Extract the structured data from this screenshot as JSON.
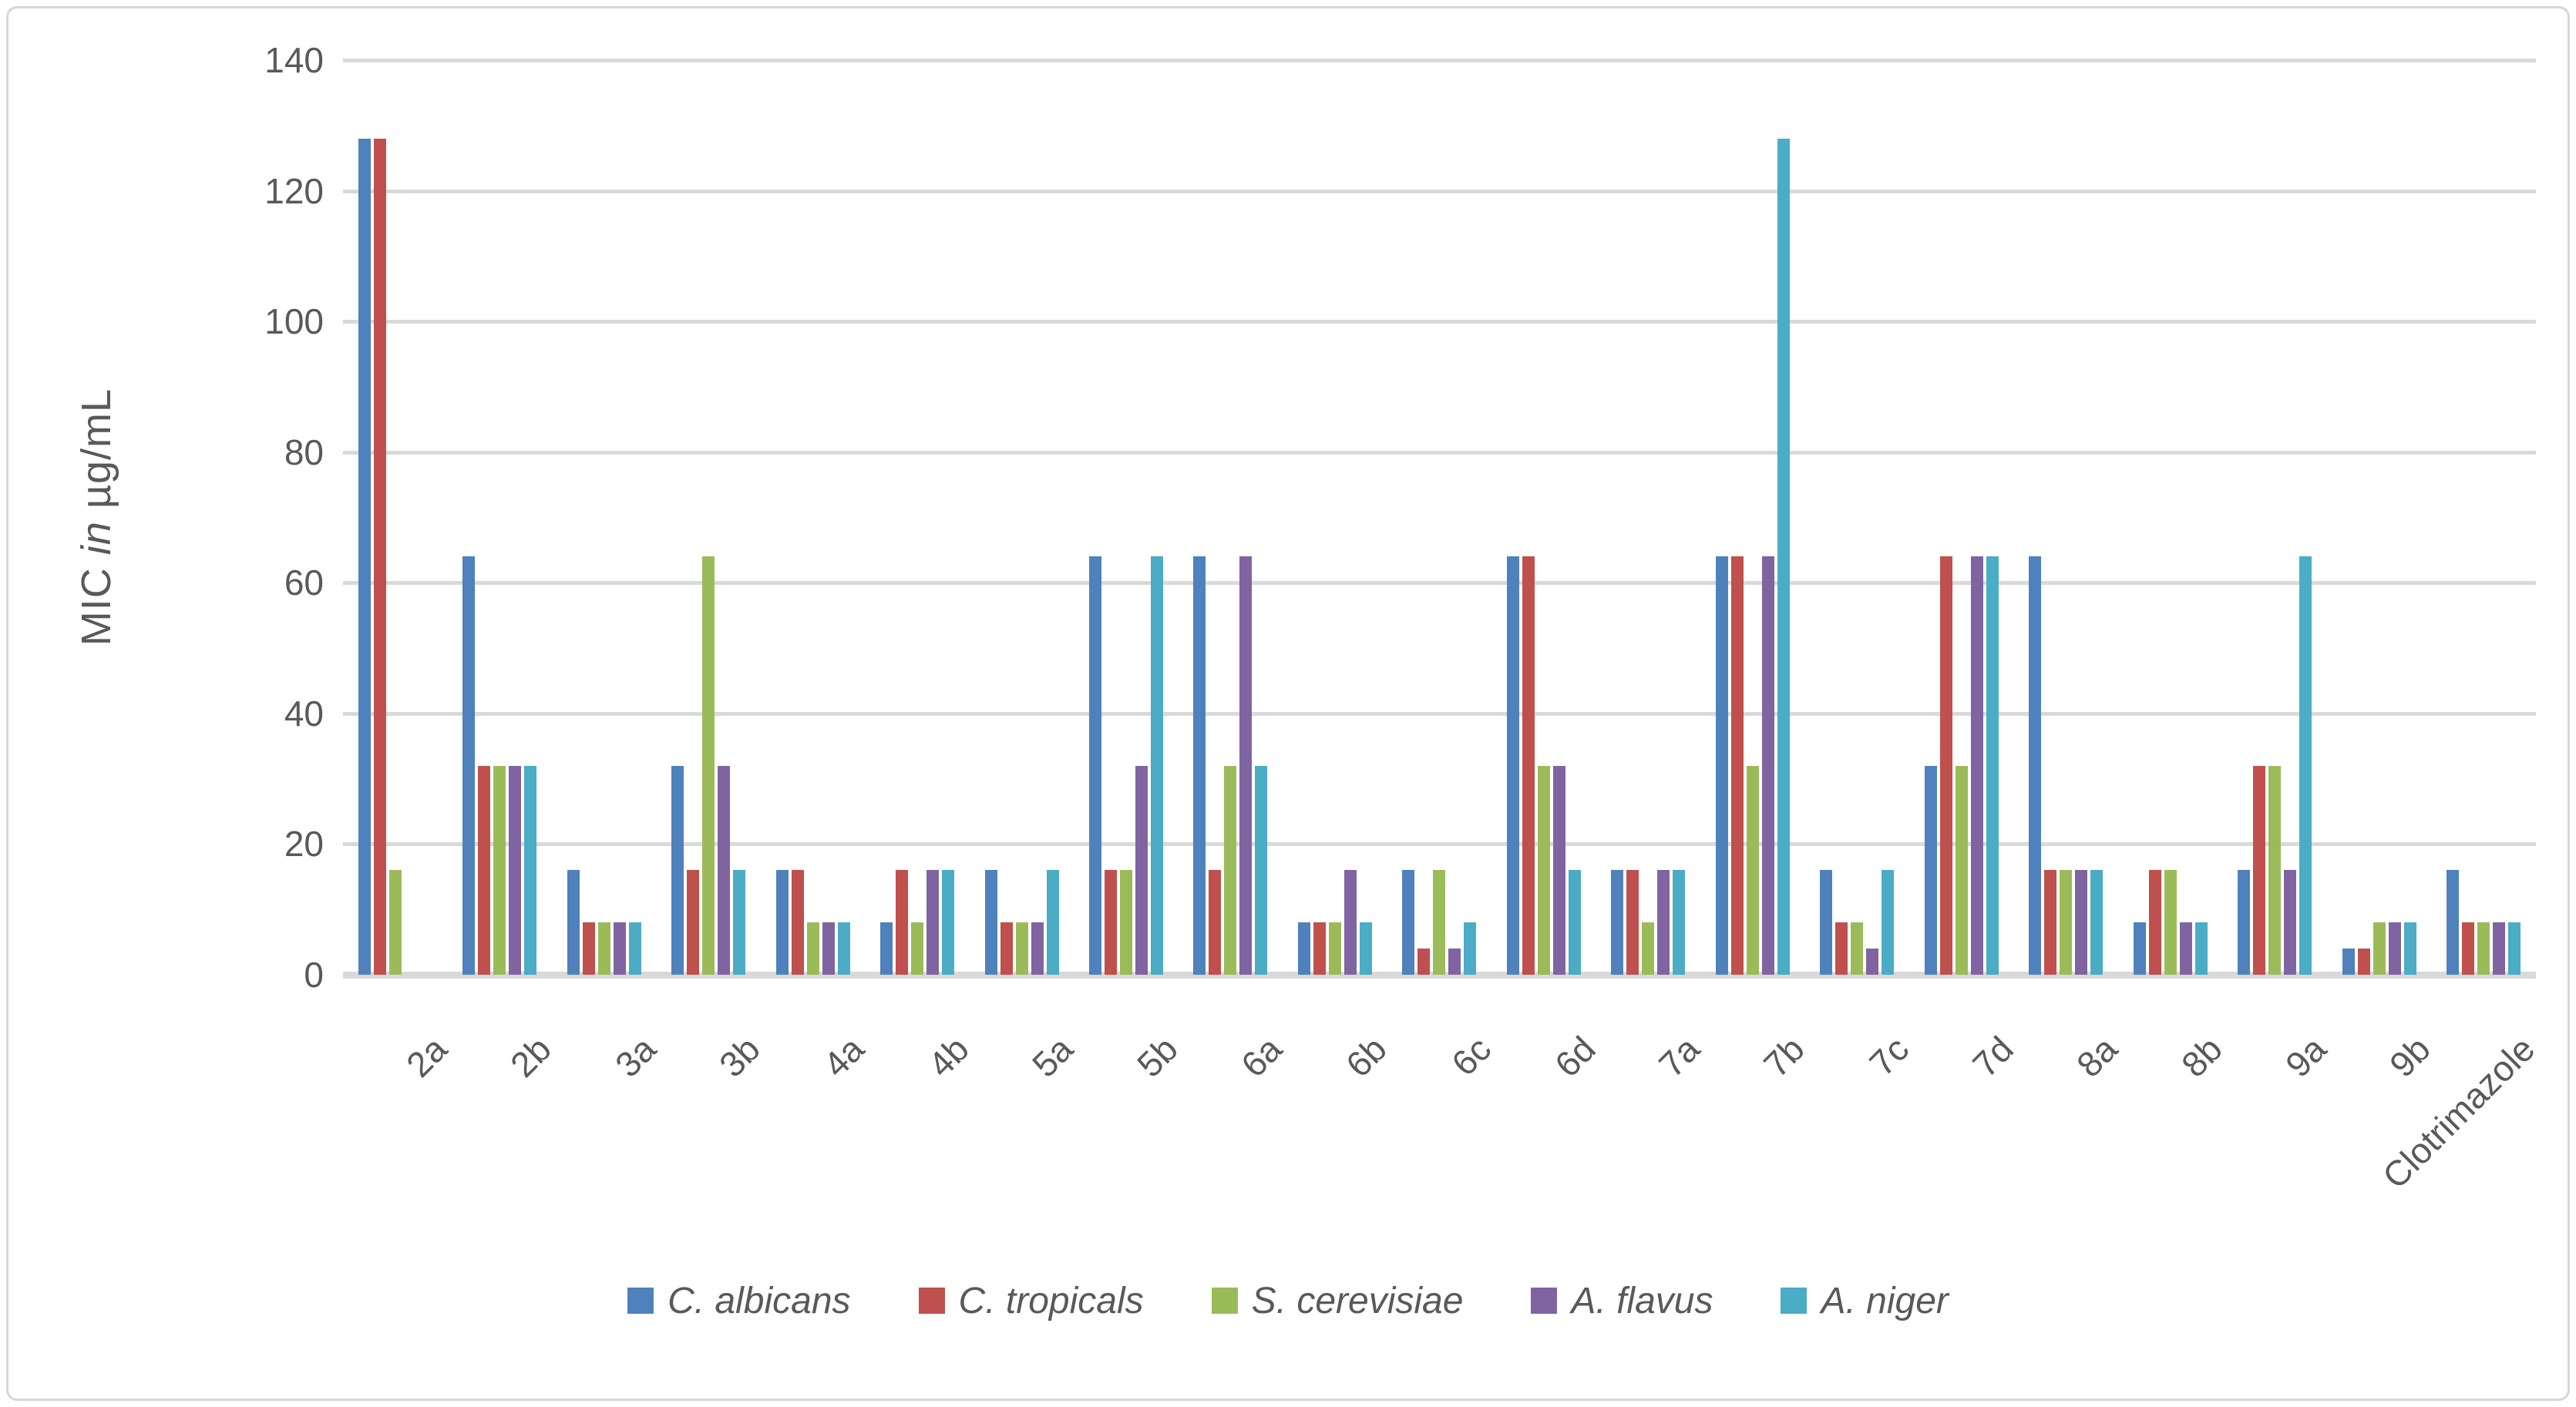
{
  "chart_data": {
    "type": "bar",
    "title": "",
    "ylabel": {
      "prefix": "MIC ",
      "italic_word": "in",
      "suffix": " µg/mL"
    },
    "y_axis": {
      "min": 0,
      "max": 140,
      "tick_step": 20,
      "ticks": [
        0,
        20,
        40,
        60,
        80,
        100,
        120,
        140
      ]
    },
    "grid": "horizontal",
    "legend_position": "bottom",
    "categories": [
      "2a",
      "2b",
      "3a",
      "3b",
      "4a",
      "4b",
      "5a",
      "5b",
      "6a",
      "6b",
      "6c",
      "6d",
      "7a",
      "7b",
      "7c",
      "7d",
      "8a",
      "8b",
      "9a",
      "9b",
      "Clotrimazole"
    ],
    "series": [
      {
        "name": "C. albicans",
        "color": "#4F81BD",
        "values": [
          128,
          64,
          16,
          32,
          16,
          8,
          16,
          64,
          64,
          8,
          16,
          64,
          16,
          64,
          16,
          32,
          64,
          8,
          16,
          4,
          16
        ]
      },
      {
        "name": "C. tropicals",
        "color": "#C0504D",
        "values": [
          128,
          32,
          8,
          16,
          16,
          16,
          8,
          16,
          16,
          8,
          4,
          64,
          16,
          64,
          8,
          64,
          16,
          16,
          32,
          4,
          8
        ]
      },
      {
        "name": "S. cerevisiae",
        "color": "#9BBB59",
        "values": [
          16,
          32,
          8,
          64,
          8,
          8,
          8,
          16,
          32,
          8,
          16,
          32,
          8,
          32,
          8,
          32,
          16,
          16,
          32,
          8,
          8
        ]
      },
      {
        "name": "A. flavus",
        "color": "#8064A2",
        "values": [
          0,
          32,
          8,
          32,
          8,
          16,
          8,
          32,
          64,
          16,
          4,
          32,
          16,
          64,
          4,
          64,
          16,
          8,
          16,
          8,
          8
        ]
      },
      {
        "name": "A. niger",
        "color": "#4BACC6",
        "values": [
          0,
          32,
          8,
          16,
          8,
          16,
          16,
          64,
          32,
          8,
          8,
          16,
          16,
          128,
          16,
          64,
          16,
          8,
          64,
          8,
          8
        ]
      }
    ],
    "colors": {
      "gridline": "#d9d9d9",
      "baseline": "#d9d9d9",
      "axis_text": "#595959",
      "background": "#ffffff",
      "frame_border": "#d7d7d7"
    }
  }
}
